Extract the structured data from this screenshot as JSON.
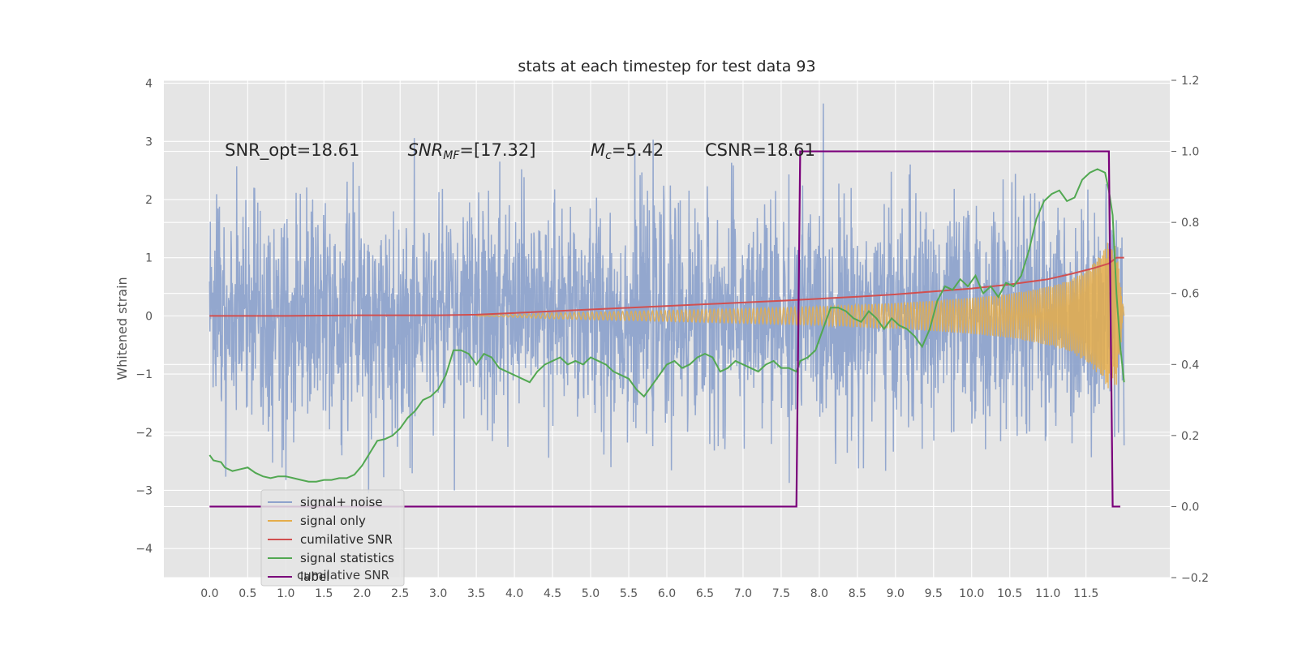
{
  "chart_data": {
    "type": "line",
    "title": "stats at each timestep for test data 93",
    "ylabel": "Whitened strain",
    "xlabel": "",
    "xlim": [
      -0.6,
      12.6
    ],
    "ylim": [
      -4.5,
      4.05
    ],
    "y2lim": [
      -0.2,
      1.2
    ],
    "x_ticks": [
      "0.0",
      "0.5",
      "1.0",
      "1.5",
      "2.0",
      "2.5",
      "3.0",
      "3.5",
      "4.0",
      "4.5",
      "5.0",
      "5.5",
      "6.0",
      "6.5",
      "7.0",
      "7.5",
      "8.0",
      "8.5",
      "9.0",
      "9.5",
      "10.0",
      "10.5",
      "11.0",
      "11.5"
    ],
    "y_ticks": [
      4,
      3,
      2,
      1,
      0,
      -1,
      -2,
      -3,
      -4
    ],
    "y_tick_labels": [
      "4",
      "3",
      "2",
      "1",
      "0",
      "−1",
      "−2",
      "−3",
      "−4"
    ],
    "y2_ticks": [
      1.2,
      1.0,
      0.8,
      0.6,
      0.4,
      0.2,
      0.0,
      -0.2
    ],
    "y2_tick_labels": [
      "1.2",
      "1.0",
      "0.8",
      "0.6",
      "0.4",
      "0.2",
      "0.0",
      "−0.2"
    ],
    "grid": true,
    "legend_position": "lower-left",
    "annotations": [
      {
        "text": "SNR_opt=18.61",
        "x": 0.2,
        "y": 2.85
      },
      {
        "text": "SNR_MF=[17.32]",
        "x": 2.6,
        "y": 2.85,
        "math": true
      },
      {
        "text": "M_c=5.42",
        "x": 5.0,
        "y": 2.85,
        "math": true
      },
      {
        "text": "CSNR=18.61",
        "x": 6.5,
        "y": 2.85
      }
    ],
    "colors": {
      "plot_bg": "#e5e5e5",
      "grid": "#ffffff",
      "signal_noise": "#8ea3cc",
      "signal_only": "#e5ad4a",
      "cumulative_snr": "#d14f4f",
      "signal_statistics": "#52a852",
      "label": "#7a007a"
    },
    "series": [
      {
        "name": "signal+ noise",
        "axis": "left",
        "style": "noise",
        "x_range": [
          0.0,
          12.0
        ],
        "envelope": {
          "upper_p90": 1.6,
          "lower_p10": -1.75,
          "peak_max": 3.65,
          "peak_min": -4.1
        }
      },
      {
        "name": "signal only",
        "axis": "left",
        "style": "chirp",
        "x": [
          3.5,
          4.5,
          5.5,
          6.5,
          7.5,
          8.0,
          8.5,
          9.0,
          9.5,
          10.0,
          10.5,
          11.0,
          11.3,
          11.5,
          11.7,
          11.8,
          11.9,
          12.0
        ],
        "amplitude": [
          0.0,
          0.05,
          0.08,
          0.11,
          0.14,
          0.16,
          0.19,
          0.22,
          0.26,
          0.31,
          0.38,
          0.5,
          0.62,
          0.8,
          1.05,
          1.3,
          1.2,
          0.0
        ]
      },
      {
        "name": "cumilative SNR",
        "axis": "left",
        "x": [
          0.0,
          1.0,
          2.0,
          3.0,
          3.5,
          4.5,
          5.5,
          6.5,
          7.5,
          8.5,
          9.0,
          9.5,
          10.0,
          10.5,
          11.0,
          11.3,
          11.6,
          11.8,
          11.9,
          12.0
        ],
        "y": [
          0.0,
          0.0,
          0.01,
          0.01,
          0.02,
          0.08,
          0.14,
          0.2,
          0.26,
          0.33,
          0.37,
          0.42,
          0.47,
          0.54,
          0.63,
          0.72,
          0.82,
          0.9,
          1.0,
          1.0
        ]
      },
      {
        "name": "signal statistics",
        "axis": "right",
        "x": [
          0.0,
          0.05,
          0.15,
          0.2,
          0.3,
          0.4,
          0.5,
          0.6,
          0.7,
          0.8,
          0.9,
          1.0,
          1.1,
          1.2,
          1.3,
          1.4,
          1.5,
          1.6,
          1.7,
          1.8,
          1.9,
          2.0,
          2.1,
          2.2,
          2.3,
          2.4,
          2.5,
          2.6,
          2.7,
          2.8,
          2.9,
          3.0,
          3.1,
          3.2,
          3.3,
          3.4,
          3.5,
          3.6,
          3.7,
          3.8,
          3.9,
          4.0,
          4.1,
          4.2,
          4.3,
          4.4,
          4.5,
          4.6,
          4.7,
          4.8,
          4.9,
          5.0,
          5.1,
          5.2,
          5.3,
          5.4,
          5.5,
          5.6,
          5.7,
          5.8,
          5.9,
          6.0,
          6.1,
          6.2,
          6.3,
          6.4,
          6.5,
          6.6,
          6.7,
          6.8,
          6.9,
          7.0,
          7.1,
          7.2,
          7.3,
          7.4,
          7.5,
          7.6,
          7.7,
          7.75,
          7.85,
          7.95,
          8.05,
          8.15,
          8.25,
          8.35,
          8.45,
          8.55,
          8.65,
          8.75,
          8.85,
          8.95,
          9.05,
          9.15,
          9.25,
          9.35,
          9.45,
          9.55,
          9.65,
          9.75,
          9.85,
          9.95,
          10.05,
          10.15,
          10.25,
          10.35,
          10.45,
          10.55,
          10.65,
          10.75,
          10.85,
          10.95,
          11.05,
          11.15,
          11.25,
          11.35,
          11.45,
          11.55,
          11.65,
          11.75,
          11.8,
          11.85,
          11.9,
          11.95,
          12.0
        ],
        "y": [
          0.145,
          0.13,
          0.125,
          0.11,
          0.1,
          0.105,
          0.11,
          0.095,
          0.085,
          0.08,
          0.085,
          0.085,
          0.08,
          0.075,
          0.07,
          0.07,
          0.075,
          0.075,
          0.08,
          0.08,
          0.09,
          0.115,
          0.15,
          0.185,
          0.19,
          0.2,
          0.22,
          0.25,
          0.27,
          0.3,
          0.31,
          0.33,
          0.37,
          0.44,
          0.44,
          0.43,
          0.4,
          0.43,
          0.42,
          0.39,
          0.38,
          0.37,
          0.36,
          0.35,
          0.38,
          0.4,
          0.41,
          0.42,
          0.4,
          0.41,
          0.4,
          0.42,
          0.41,
          0.4,
          0.38,
          0.37,
          0.36,
          0.33,
          0.31,
          0.34,
          0.37,
          0.4,
          0.41,
          0.39,
          0.4,
          0.42,
          0.43,
          0.42,
          0.38,
          0.39,
          0.41,
          0.4,
          0.39,
          0.38,
          0.4,
          0.41,
          0.39,
          0.39,
          0.38,
          0.41,
          0.42,
          0.44,
          0.5,
          0.56,
          0.56,
          0.55,
          0.53,
          0.52,
          0.55,
          0.53,
          0.5,
          0.53,
          0.51,
          0.5,
          0.48,
          0.45,
          0.5,
          0.58,
          0.62,
          0.61,
          0.64,
          0.62,
          0.65,
          0.6,
          0.62,
          0.59,
          0.63,
          0.62,
          0.65,
          0.72,
          0.81,
          0.86,
          0.88,
          0.89,
          0.86,
          0.87,
          0.92,
          0.94,
          0.95,
          0.94,
          0.89,
          0.82,
          0.6,
          0.45,
          0.35
        ]
      },
      {
        "name": "label",
        "axis": "right",
        "x": [
          0.0,
          7.7,
          7.75,
          11.8,
          11.85,
          11.95
        ],
        "y": [
          0.0,
          0.0,
          1.0,
          1.0,
          0.0,
          0.0
        ]
      }
    ],
    "legend_entries": [
      "signal+ noise",
      "signal only",
      "cumilative SNR",
      "signal statistics",
      "label"
    ],
    "legend_shadow_text": "cumilative SNR"
  }
}
